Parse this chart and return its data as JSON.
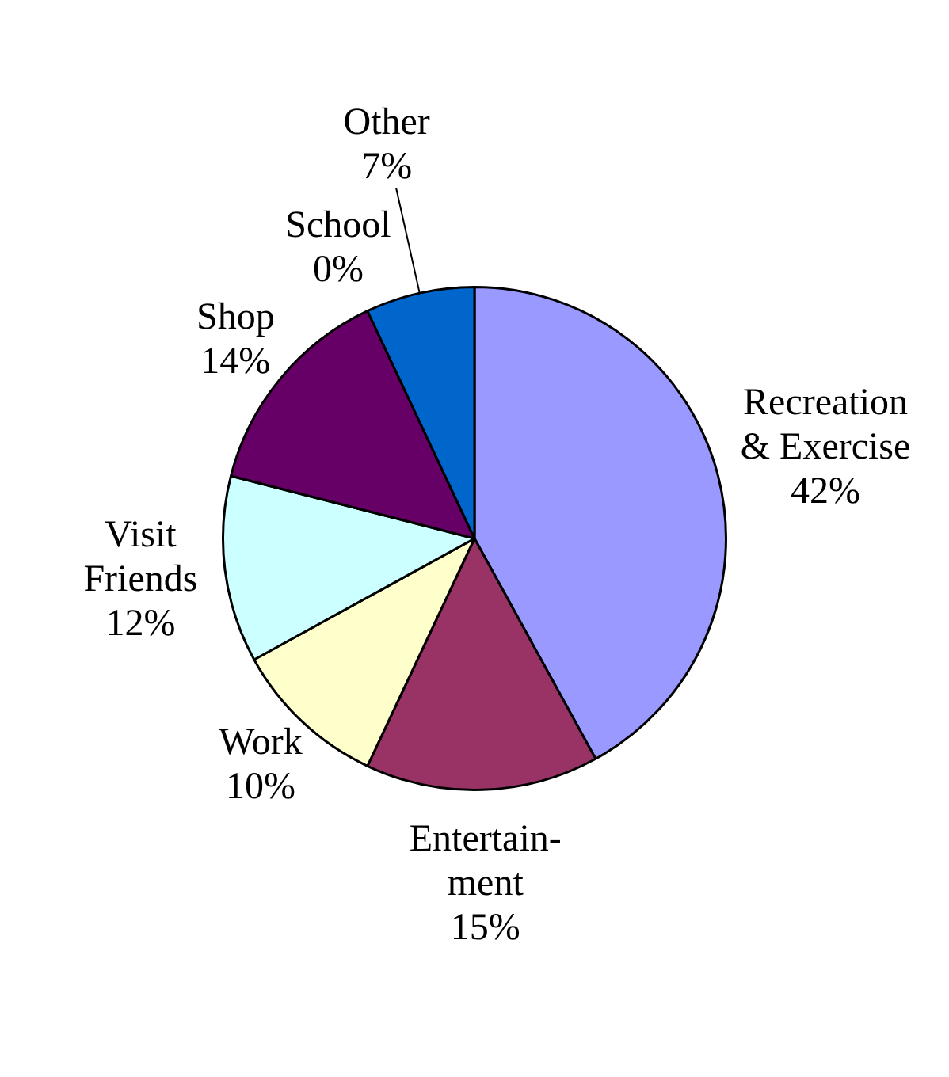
{
  "chart_data": {
    "type": "pie",
    "categories": [
      "Recreation\n& Exercise",
      "Entertain-\nment",
      "Work",
      "Visit\nFriends",
      "Shop",
      "School",
      "Other"
    ],
    "values": [
      42,
      15,
      10,
      12,
      14,
      0,
      7
    ],
    "value_labels": [
      "42%",
      "15%",
      "10%",
      "12%",
      "14%",
      "0%",
      "7%"
    ],
    "colors": [
      "#9999ff",
      "#993366",
      "#ffffcc",
      "#ccffff",
      "#660066",
      "#ffffff",
      "#0066cc"
    ],
    "legend": false
  }
}
